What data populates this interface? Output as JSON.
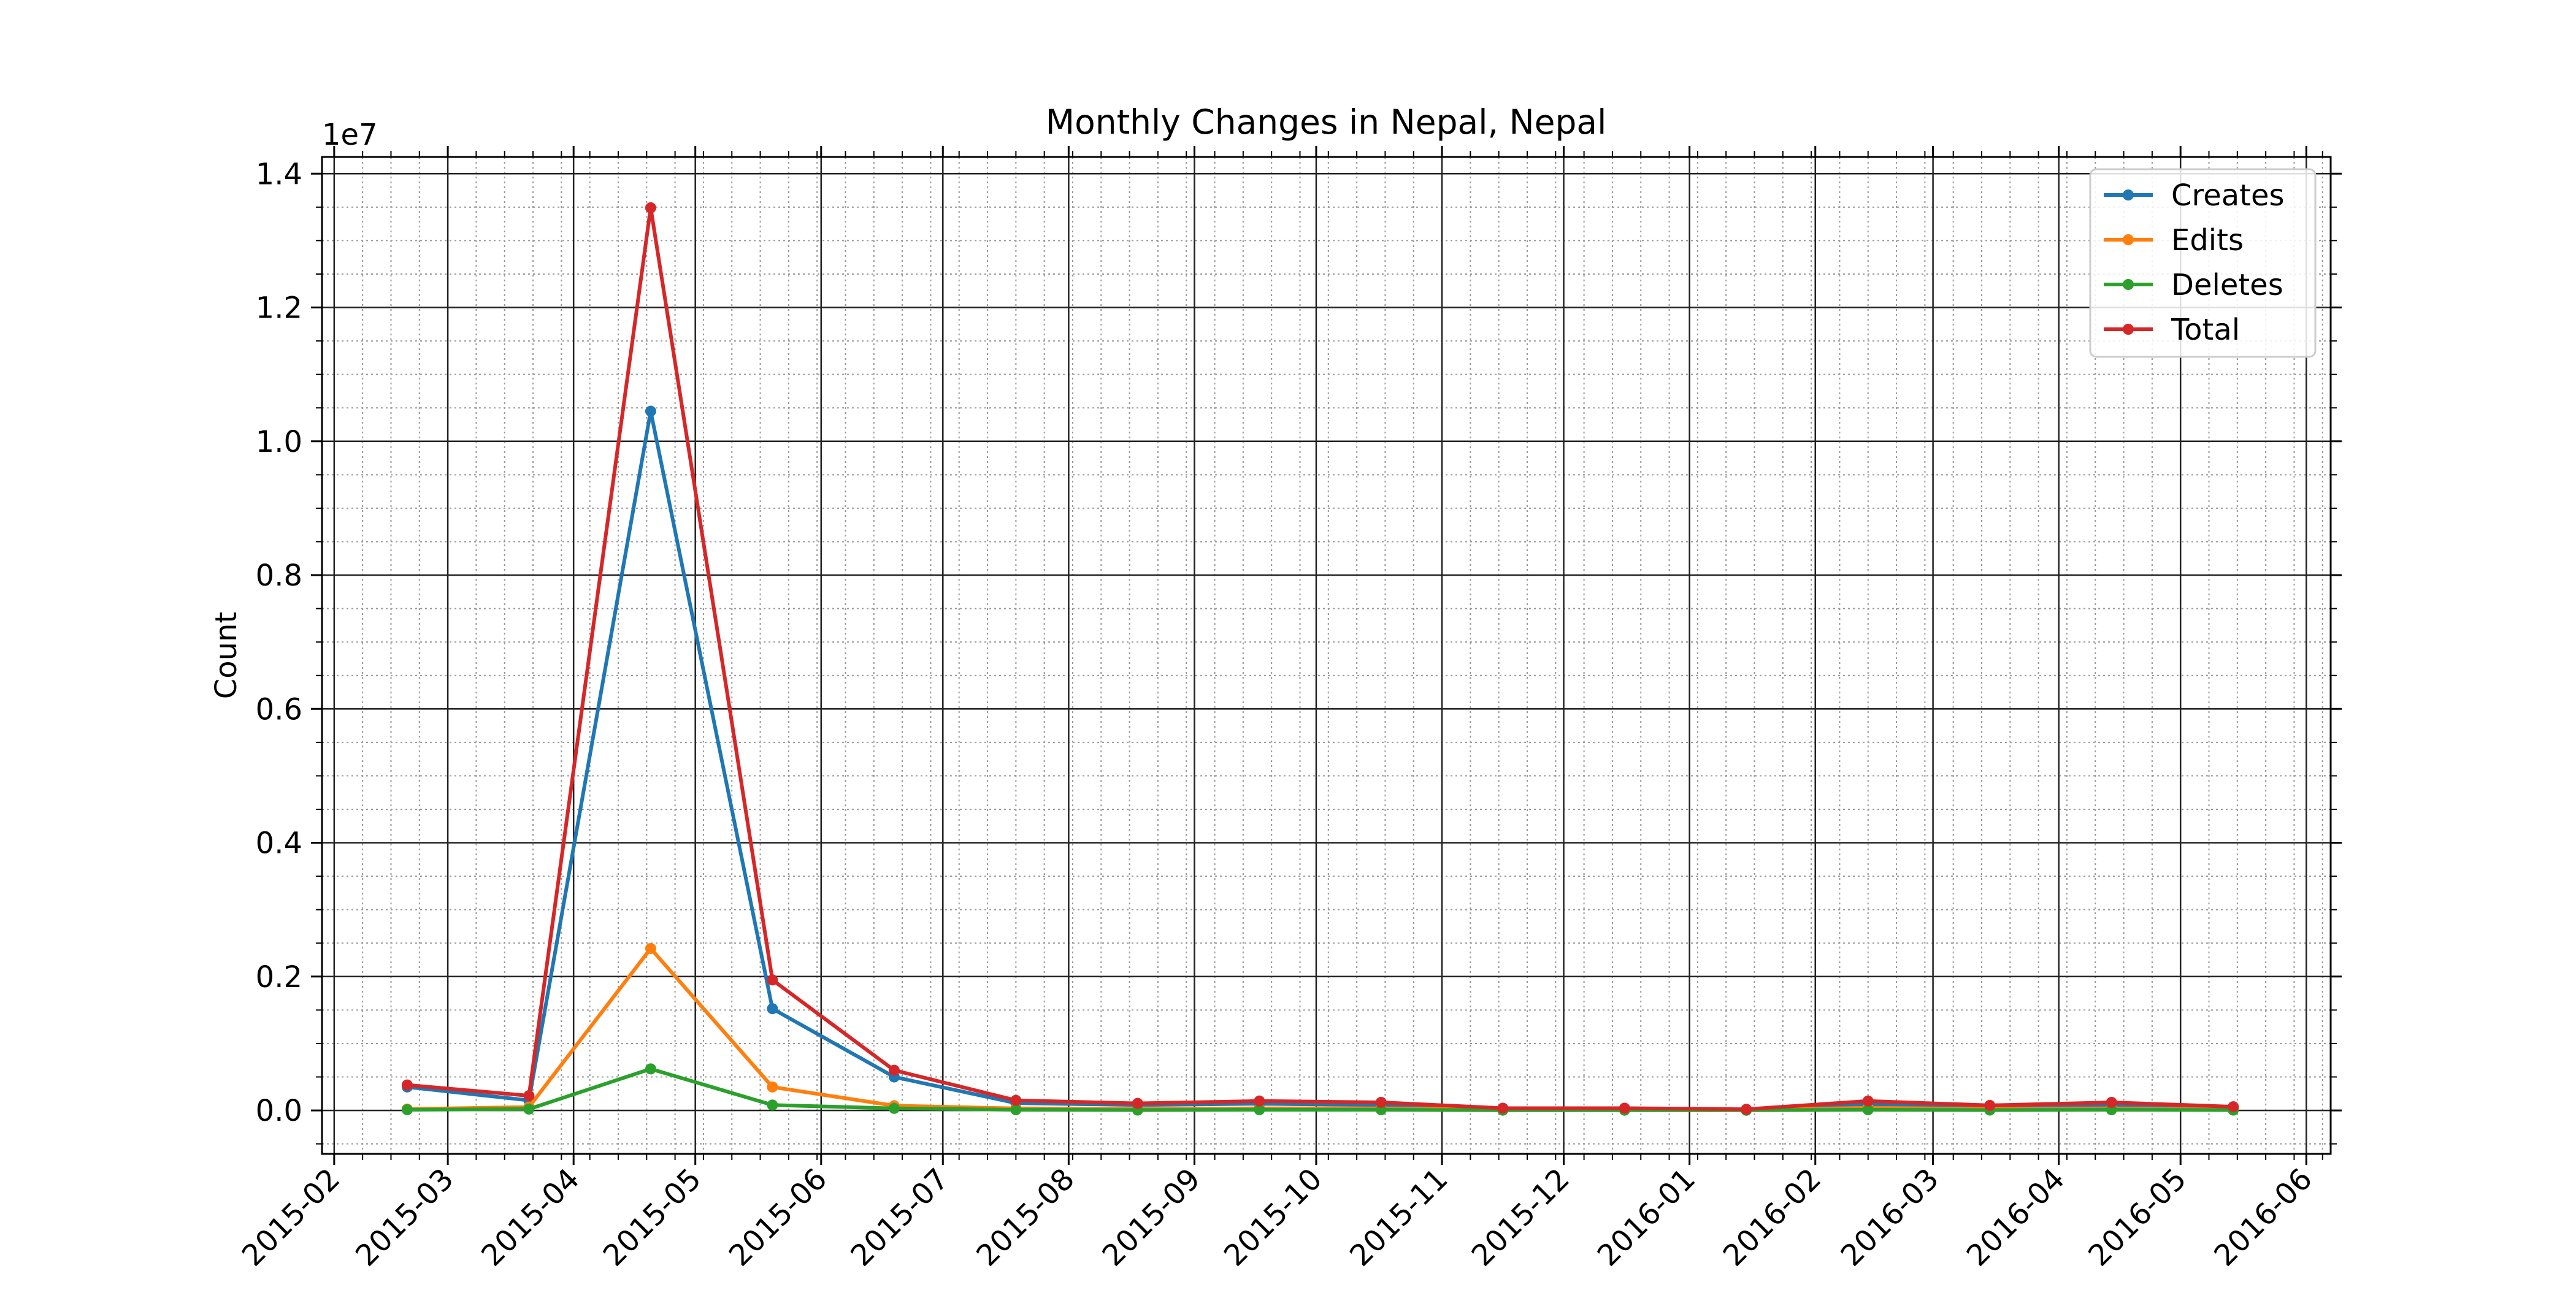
{
  "chart_data": {
    "type": "line",
    "title": "Monthly Changes in Nepal, Nepal",
    "xlabel": "",
    "ylabel": "Count",
    "y_offset_label": "1e7",
    "y_scale": 10000000,
    "xlim": [
      "2015-01-29",
      "2016-06-07"
    ],
    "ylim": [
      -650000,
      14250000
    ],
    "x_ticks": [
      "2015-02",
      "2015-03",
      "2015-04",
      "2015-05",
      "2015-06",
      "2015-07",
      "2015-08",
      "2015-09",
      "2015-10",
      "2015-11",
      "2015-12",
      "2016-01",
      "2016-02",
      "2016-03",
      "2016-04",
      "2016-05",
      "2016-06"
    ],
    "y_ticks": [
      0.0,
      0.2,
      0.4,
      0.6,
      0.8,
      1.0,
      1.2,
      1.4
    ],
    "grid": true,
    "legend_position": "top-right",
    "x": [
      "2015-02-19",
      "2015-03-21",
      "2015-04-20",
      "2015-05-20",
      "2015-06-19",
      "2015-07-19",
      "2015-08-18",
      "2015-09-17",
      "2015-10-17",
      "2015-11-16",
      "2015-12-16",
      "2016-01-15",
      "2016-02-14",
      "2016-03-15",
      "2016-04-14",
      "2016-05-14"
    ],
    "series": [
      {
        "name": "Creates",
        "color": "#1f77b4",
        "values": [
          350000,
          150000,
          10450000,
          1520000,
          500000,
          110000,
          80000,
          100000,
          80000,
          20000,
          20000,
          10000,
          90000,
          50000,
          80000,
          40000
        ]
      },
      {
        "name": "Edits",
        "color": "#ff7f0e",
        "values": [
          20000,
          50000,
          2420000,
          350000,
          70000,
          30000,
          20000,
          30000,
          30000,
          10000,
          10000,
          5000,
          40000,
          20000,
          30000,
          10000
        ]
      },
      {
        "name": "Deletes",
        "color": "#2ca02c",
        "values": [
          10000,
          20000,
          620000,
          80000,
          30000,
          10000,
          5000,
          10000,
          10000,
          3000,
          3000,
          2000,
          10000,
          5000,
          10000,
          5000
        ]
      },
      {
        "name": "Total",
        "color": "#d62728",
        "values": [
          380000,
          220000,
          13490000,
          1950000,
          600000,
          150000,
          105000,
          140000,
          120000,
          33000,
          33000,
          17000,
          140000,
          75000,
          120000,
          55000
        ]
      }
    ]
  }
}
